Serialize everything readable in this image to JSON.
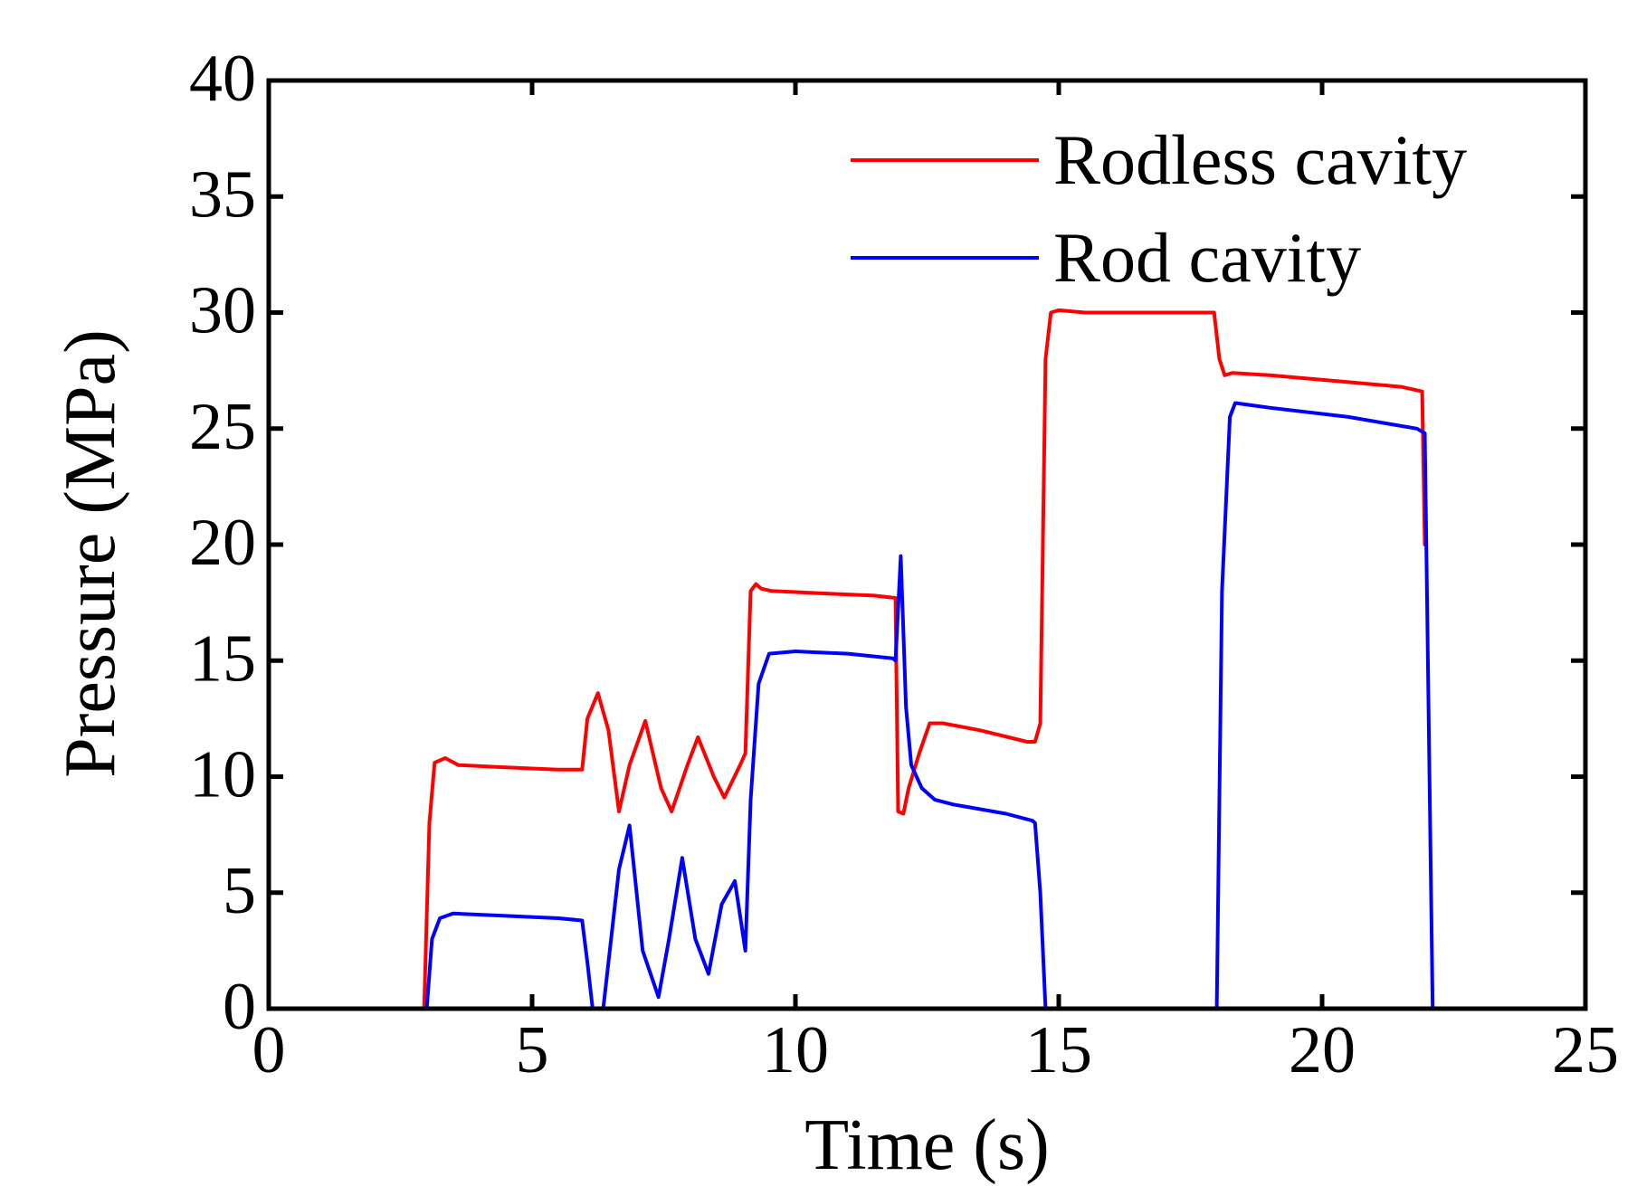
{
  "chart_data": {
    "type": "line",
    "title": "",
    "xlabel": "Time (s)",
    "ylabel": "Pressure (MPa)",
    "xlim": [
      0,
      25
    ],
    "ylim": [
      0,
      40
    ],
    "xticks": [
      0,
      5,
      10,
      15,
      20,
      25
    ],
    "yticks": [
      0,
      5,
      10,
      15,
      20,
      25,
      30,
      35,
      40
    ],
    "xtick_labels": [
      "0",
      "5",
      "10",
      "15",
      "20",
      "25"
    ],
    "ytick_labels": [
      "0",
      "5",
      "10",
      "15",
      "20",
      "25",
      "30",
      "35",
      "40"
    ],
    "grid": false,
    "legend_position": "top-right",
    "series": [
      {
        "name": "Rodless cavity",
        "color": "#ff0000",
        "x": [
          0,
          2.95,
          3.05,
          3.15,
          3.35,
          3.6,
          4.5,
          5.5,
          5.95,
          6.05,
          6.25,
          6.45,
          6.65,
          6.85,
          7.15,
          7.45,
          7.65,
          7.95,
          8.15,
          8.45,
          8.65,
          8.95,
          9.05,
          9.15,
          9.25,
          9.35,
          9.55,
          10.5,
          11.5,
          11.9,
          11.95,
          12.05,
          12.15,
          12.35,
          12.55,
          12.8,
          13.5,
          14.4,
          14.55,
          14.65,
          14.75,
          14.85,
          15.0,
          15.5,
          17.0,
          17.95,
          18.05,
          18.15,
          18.3,
          19.0,
          20.5,
          21.5,
          21.9,
          21.95
        ],
        "y": [
          0,
          0,
          8.0,
          10.6,
          10.8,
          10.5,
          10.4,
          10.3,
          10.3,
          12.5,
          13.6,
          12.0,
          8.5,
          10.5,
          12.4,
          9.5,
          8.5,
          10.5,
          11.7,
          10.0,
          9.1,
          10.5,
          11.0,
          18.0,
          18.3,
          18.1,
          18.0,
          17.9,
          17.8,
          17.7,
          8.5,
          8.4,
          9.5,
          11.0,
          12.3,
          12.3,
          12.0,
          11.5,
          11.5,
          12.3,
          28.0,
          30.0,
          30.1,
          30.0,
          30.0,
          30.0,
          28.0,
          27.3,
          27.4,
          27.3,
          27.0,
          26.8,
          26.6,
          20.0
        ]
      },
      {
        "name": "Rod cavity",
        "color": "#0000ff",
        "x": [
          0,
          3.0,
          3.1,
          3.25,
          3.5,
          4.5,
          5.5,
          5.95,
          6.05,
          6.15,
          6.35,
          6.65,
          6.85,
          7.1,
          7.4,
          7.6,
          7.85,
          8.1,
          8.35,
          8.6,
          8.85,
          8.95,
          9.05,
          9.15,
          9.3,
          9.5,
          10.0,
          11.0,
          11.85,
          11.9,
          12.0,
          12.1,
          12.2,
          12.4,
          12.65,
          13.0,
          14.0,
          14.5,
          14.55,
          14.65,
          14.75,
          14.85,
          18.0,
          18.1,
          18.25,
          18.35,
          19.0,
          20.5,
          21.8,
          21.95,
          22.1
        ],
        "y": [
          0,
          0,
          3.0,
          3.9,
          4.1,
          4.0,
          3.9,
          3.8,
          2.0,
          0,
          0,
          6.0,
          7.9,
          2.5,
          0.5,
          3.0,
          6.5,
          3.0,
          1.5,
          4.5,
          5.5,
          4.0,
          2.5,
          9.0,
          14.0,
          15.3,
          15.4,
          15.3,
          15.1,
          15.0,
          19.5,
          13.0,
          10.5,
          9.5,
          9.0,
          8.8,
          8.4,
          8.1,
          8.0,
          5.0,
          0,
          0,
          0,
          18.0,
          25.5,
          26.1,
          25.9,
          25.5,
          25.0,
          24.8,
          0
        ]
      }
    ]
  }
}
